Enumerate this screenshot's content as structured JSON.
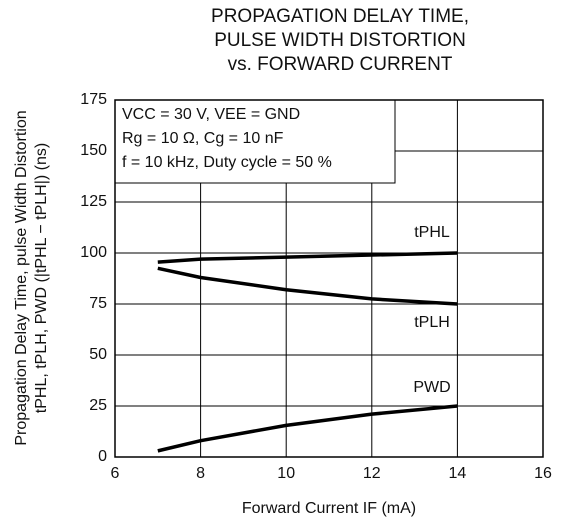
{
  "chart_data": {
    "type": "line",
    "title": [
      "PROPAGATION DELAY TIME,",
      "PULSE WIDTH DISTORTION",
      "vs. FORWARD CURRENT"
    ],
    "x_label": "Forward Current IF (mA)",
    "y_label": [
      "Propagation Delay Time, pulse Width Distortion",
      "tPHL, tPLH, PWD (|tPHL − tPLH|) (ns)"
    ],
    "annotations": [
      "VCC = 30 V, VEE = GND",
      "Rg = 10 Ω, Cg = 10 nF",
      "f = 10 kHz, Duty cycle = 50 %"
    ],
    "x": [
      7,
      8,
      10,
      12,
      14
    ],
    "series": [
      {
        "name": "tPHL",
        "color": "#000000",
        "values": [
          95.5,
          97,
          98,
          99,
          100
        ]
      },
      {
        "name": "tPLH",
        "color": "#000000",
        "values": [
          92.5,
          88,
          82,
          77.5,
          75
        ]
      },
      {
        "name": "PWD",
        "color": "#000000",
        "values": [
          3,
          8,
          15.5,
          21,
          25
        ]
      }
    ],
    "xlim": [
      6,
      16
    ],
    "xticks": [
      6,
      8,
      10,
      12,
      14,
      16
    ],
    "ylim": [
      0,
      175
    ],
    "yticks": [
      0,
      25,
      50,
      75,
      100,
      125,
      150,
      175
    ],
    "grid": true
  }
}
